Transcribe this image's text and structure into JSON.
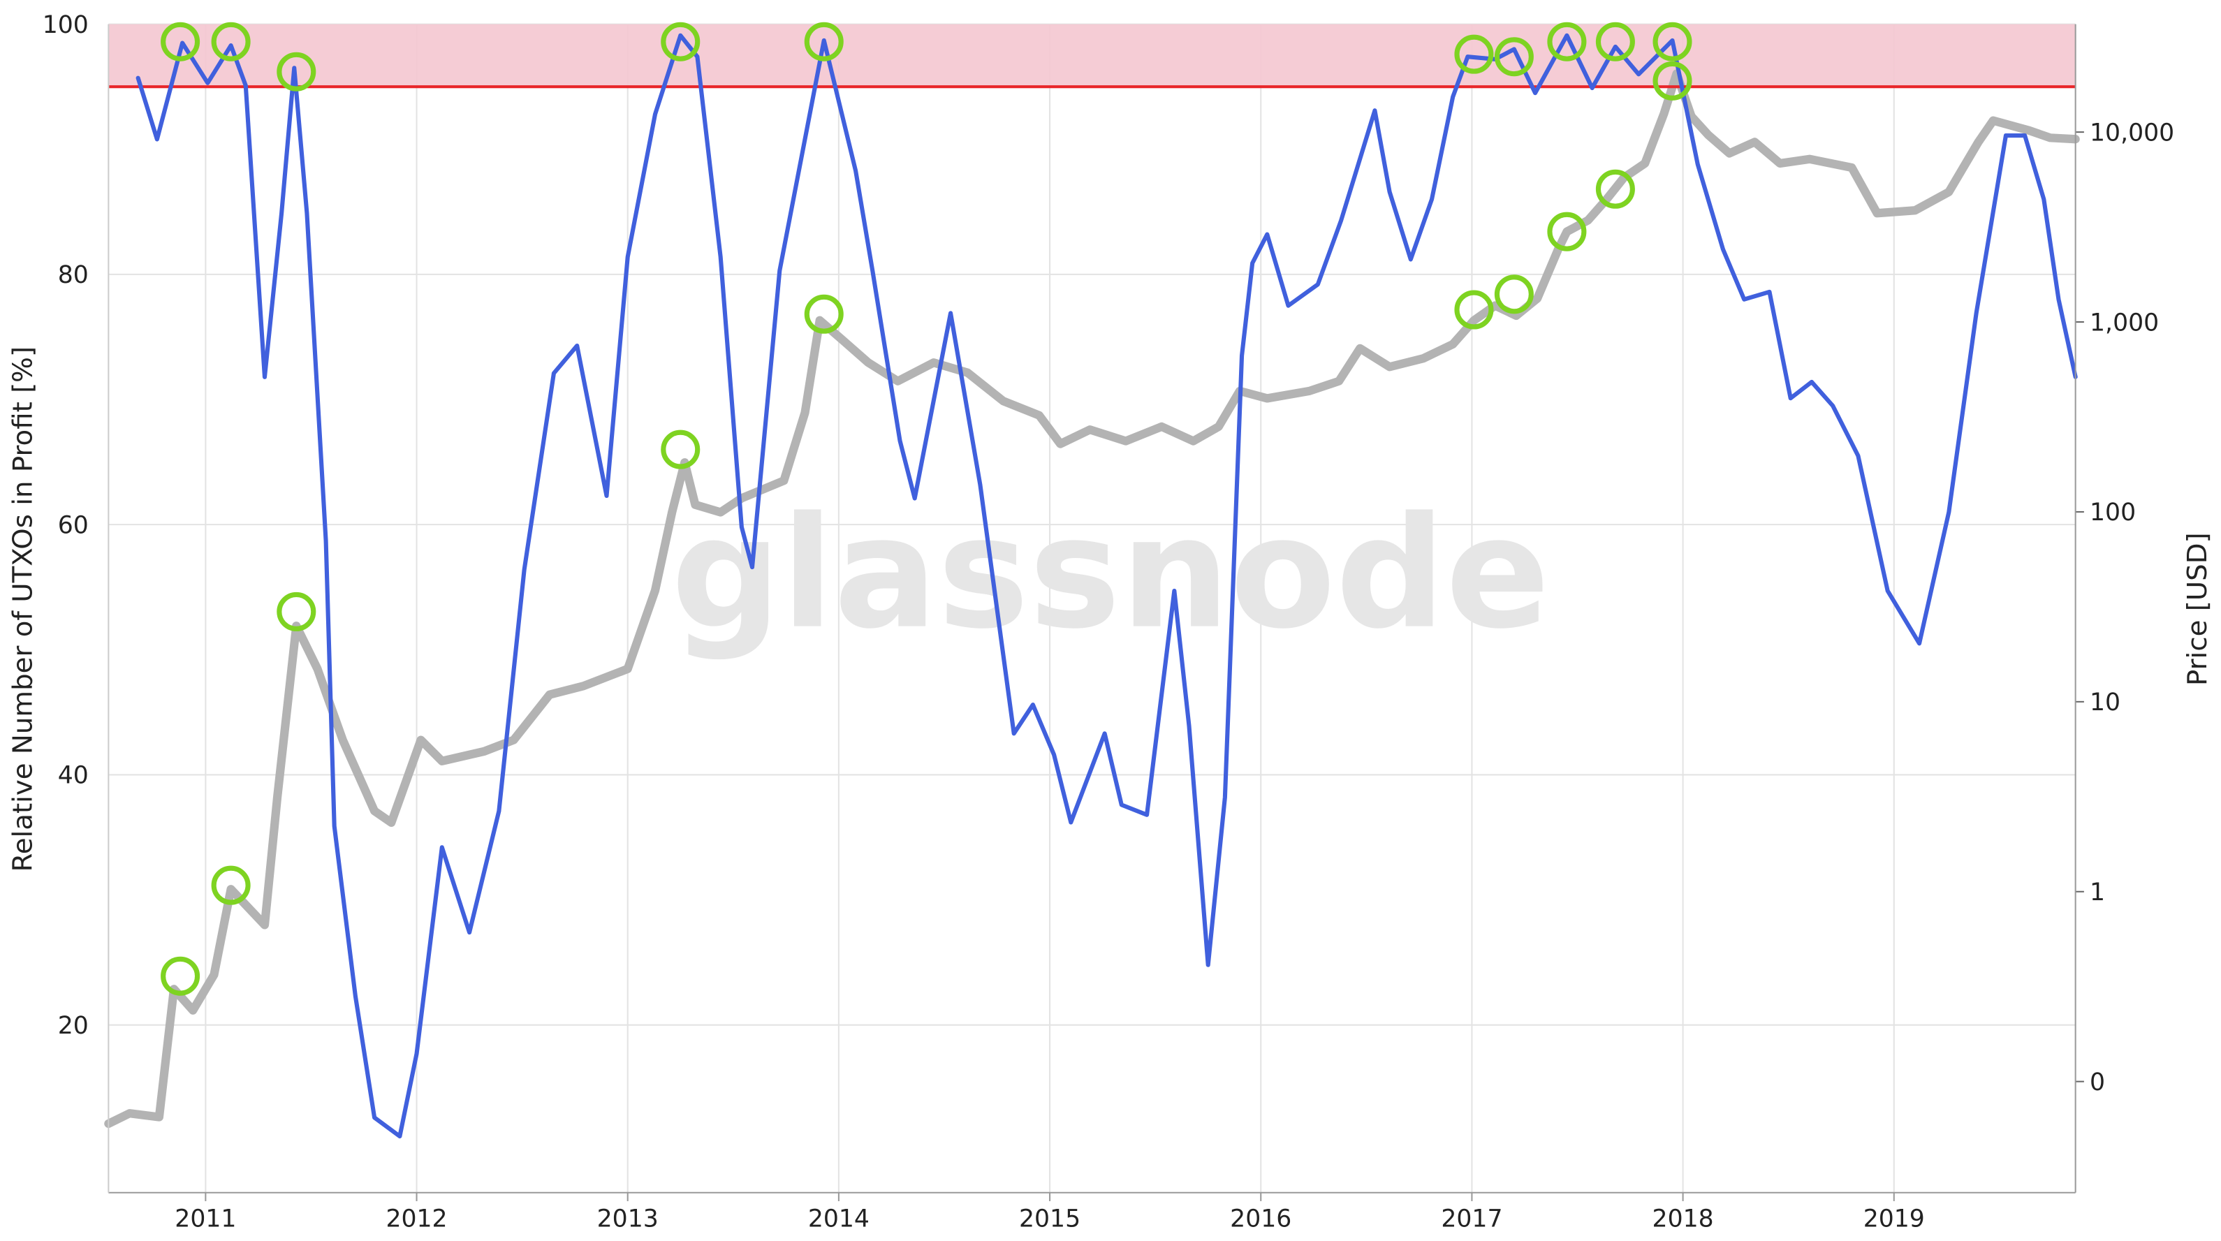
{
  "chart_data": {
    "type": "line",
    "watermark": "glassnode",
    "y_label": "Relative Number of UTXOs in Profit [%]",
    "y2_label": "Price [USD]",
    "xlim": [
      2010.54,
      2019.86
    ],
    "xticks": [
      2011,
      2012,
      2013,
      2014,
      2015,
      2016,
      2017,
      2018,
      2019
    ],
    "ylim": [
      6.6,
      100
    ],
    "yticks": [
      20,
      40,
      60,
      80,
      100
    ],
    "y2lim": [
      0.026,
      37000
    ],
    "y2_log": true,
    "y2ticks": [
      {
        "value": 0.1,
        "label": "0"
      },
      1,
      10,
      100,
      {
        "value": 1000,
        "label": "1,000"
      },
      {
        "value": 10000,
        "label": "10,000"
      }
    ],
    "grid": true,
    "band": {
      "range": [
        95,
        100
      ],
      "color": "#f4c7d0"
    },
    "threshold": {
      "value": 95,
      "color": "#e8262a"
    },
    "series": [
      {
        "color": "#b3b3b3",
        "axis": "y2",
        "x": [
          2010.54,
          2010.64,
          2010.78,
          2010.85,
          2010.94,
          2011.04,
          2011.12,
          2011.28,
          2011.34,
          2011.43,
          2011.53,
          2011.65,
          2011.8,
          2011.88,
          2012.02,
          2012.12,
          2012.32,
          2012.46,
          2012.63,
          2012.79,
          2013.0,
          2013.13,
          2013.21,
          2013.27,
          2013.32,
          2013.44,
          2013.54,
          2013.74,
          2013.84,
          2013.91,
          2014.01,
          2014.14,
          2014.28,
          2014.45,
          2014.61,
          2014.78,
          2014.95,
          2015.05,
          2015.19,
          2015.36,
          2015.53,
          2015.68,
          2015.8,
          2015.9,
          2016.03,
          2016.23,
          2016.37,
          2016.47,
          2016.61,
          2016.77,
          2016.91,
          2017.01,
          2017.11,
          2017.21,
          2017.31,
          2017.41,
          2017.45,
          2017.55,
          2017.64,
          2017.72,
          2017.82,
          2017.91,
          2017.97,
          2018.04,
          2018.12,
          2018.22,
          2018.34,
          2018.46,
          2018.6,
          2018.8,
          2018.92,
          2019.1,
          2019.26,
          2019.4,
          2019.47,
          2019.64,
          2019.74,
          2019.86
        ],
        "values": [
          0.06,
          0.068,
          0.065,
          0.307,
          0.237,
          0.365,
          1.03,
          0.668,
          3.15,
          25.1,
          14.9,
          6.29,
          2.66,
          2.31,
          6.29,
          4.87,
          5.48,
          6.29,
          10.9,
          12.1,
          14.9,
          38.5,
          99.5,
          182,
          109,
          99.5,
          118,
          146,
          333,
          1020,
          818,
          611,
          488,
          611,
          541,
          383,
          322,
          228,
          271,
          236,
          281,
          236,
          281,
          433,
          396,
          433,
          488,
          726,
          580,
          643,
          764,
          1020,
          1220,
          1080,
          1330,
          2430,
          2990,
          3430,
          4450,
          5750,
          6840,
          12500,
          20300,
          12100,
          9660,
          7730,
          8870,
          6840,
          7210,
          6500,
          3740,
          3870,
          4840,
          8870,
          11500,
          10200,
          9330,
          9180
        ]
      },
      {
        "color": "#4060dd",
        "axis": "y",
        "x": [
          2010.68,
          2010.77,
          2010.89,
          2011.01,
          2011.12,
          2011.19,
          2011.28,
          2011.36,
          2011.42,
          2011.48,
          2011.57,
          2011.61,
          2011.71,
          2011.8,
          2011.92,
          2012.0,
          2012.12,
          2012.25,
          2012.39,
          2012.51,
          2012.65,
          2012.76,
          2012.9,
          2013.0,
          2013.13,
          2013.25,
          2013.33,
          2013.44,
          2013.54,
          2013.59,
          2013.72,
          2013.93,
          2014.08,
          2014.16,
          2014.29,
          2014.36,
          2014.53,
          2014.67,
          2014.83,
          2014.92,
          2015.02,
          2015.1,
          2015.26,
          2015.34,
          2015.46,
          2015.59,
          2015.66,
          2015.75,
          2015.83,
          2015.91,
          2015.96,
          2016.03,
          2016.13,
          2016.27,
          2016.38,
          2016.54,
          2016.61,
          2016.71,
          2016.81,
          2016.91,
          2016.98,
          2017.11,
          2017.2,
          2017.3,
          2017.45,
          2017.57,
          2017.68,
          2017.79,
          2017.95,
          2018.07,
          2018.19,
          2018.29,
          2018.41,
          2018.51,
          2018.61,
          2018.71,
          2018.83,
          2018.97,
          2019.12,
          2019.26,
          2019.39,
          2019.53,
          2019.62,
          2019.71,
          2019.78,
          2019.86
        ],
        "values": [
          95.7,
          90.8,
          98.5,
          95.3,
          98.3,
          95.1,
          71.8,
          84.9,
          96.5,
          84.9,
          58.7,
          35.9,
          22.3,
          12.6,
          11.1,
          17.7,
          34.2,
          27.4,
          37.1,
          56.4,
          72.1,
          74.3,
          62.3,
          81.4,
          92.8,
          99.1,
          97.4,
          81.4,
          59.8,
          56.6,
          80.3,
          98.7,
          88.3,
          80.3,
          66.7,
          62.1,
          76.9,
          63.2,
          43.3,
          45.6,
          41.6,
          36.2,
          43.3,
          37.6,
          36.8,
          54.7,
          43.9,
          24.8,
          38.2,
          73.5,
          80.9,
          83.2,
          77.5,
          79.2,
          84.3,
          93.1,
          86.6,
          81.2,
          86.0,
          94.2,
          97.4,
          97.2,
          98.0,
          94.5,
          99.1,
          94.9,
          98.2,
          96.0,
          98.7,
          88.8,
          82.0,
          78.0,
          78.6,
          70.1,
          71.4,
          69.5,
          65.5,
          54.7,
          50.5,
          61.0,
          76.9,
          91.1,
          91.1,
          86.0,
          78.0,
          71.8
        ]
      }
    ],
    "markers": {
      "color": "#7ed321",
      "y": {
        "x": [
          2010.88,
          2011.12,
          2011.43,
          2013.25,
          2013.93,
          2017.01,
          2017.2,
          2017.45,
          2017.68,
          2017.95
        ],
        "values": [
          98.6,
          98.6,
          96.2,
          98.6,
          98.6,
          97.6,
          97.4,
          98.6,
          98.6,
          98.6
        ]
      },
      "y2": {
        "x": [
          2010.88,
          2011.12,
          2011.43,
          2013.25,
          2013.93,
          2017.01,
          2017.2,
          2017.45,
          2017.68,
          2017.95
        ],
        "values": [
          0.359,
          1.08,
          29.8,
          213,
          1100,
          1160,
          1400,
          2990,
          5010,
          18600
        ]
      }
    }
  }
}
